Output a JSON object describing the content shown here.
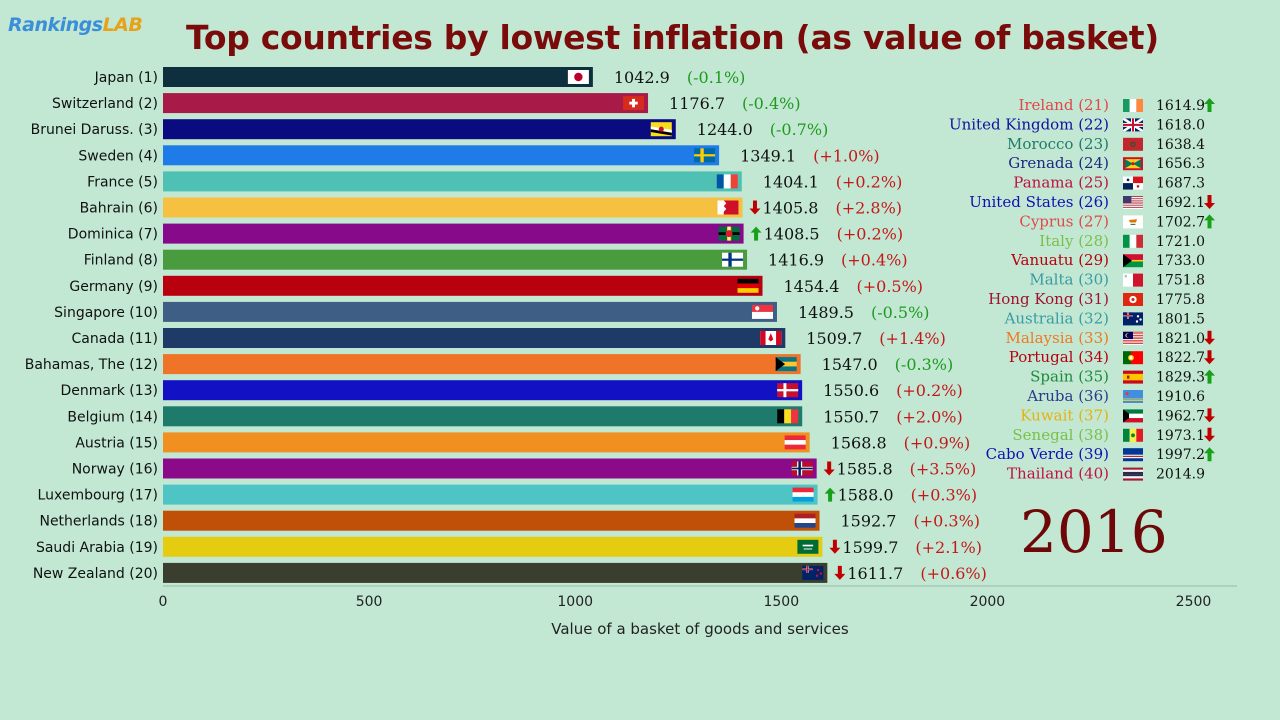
{
  "brand": {
    "part1": "Rankings",
    "part2": "LAB"
  },
  "title": "Top countries by lowest inflation (as value of basket)",
  "year": "2016",
  "chart_data": {
    "type": "bar",
    "orientation": "horizontal",
    "title": "Top countries by lowest inflation (as value of basket)",
    "xlabel": "Value of a basket of goods and services",
    "xlim": [
      0,
      2600
    ],
    "xticks": [
      0,
      500,
      1000,
      1500,
      2000,
      2500
    ],
    "grid": false,
    "bars": [
      {
        "label": "Japan (1)",
        "value": 1042.9,
        "value_text": "1042.9",
        "change": "(-0.1%)",
        "trend": "none",
        "color": "#0e2f3e",
        "flag": "jp"
      },
      {
        "label": "Switzerland (2)",
        "value": 1176.7,
        "value_text": "1176.7",
        "change": "(-0.4%)",
        "trend": "none",
        "color": "#a81a48",
        "flag": "ch"
      },
      {
        "label": "Brunei Daruss. (3)",
        "value": 1244.0,
        "value_text": "1244.0",
        "change": "(-0.7%)",
        "trend": "none",
        "color": "#0b0b80",
        "flag": "bn"
      },
      {
        "label": "Sweden (4)",
        "value": 1349.1,
        "value_text": "1349.1",
        "change": "(+1.0%)",
        "trend": "none",
        "color": "#1e7be8",
        "flag": "se"
      },
      {
        "label": "France (5)",
        "value": 1404.1,
        "value_text": "1404.1",
        "change": "(+0.2%)",
        "trend": "none",
        "color": "#4ec1b4",
        "flag": "fr"
      },
      {
        "label": "Bahrain (6)",
        "value": 1405.8,
        "value_text": "1405.8",
        "change": "(+2.8%)",
        "trend": "down",
        "color": "#f6c040",
        "flag": "bh"
      },
      {
        "label": "Dominica (7)",
        "value": 1408.5,
        "value_text": "1408.5",
        "change": "(+0.2%)",
        "trend": "up",
        "color": "#860a8a",
        "flag": "dm"
      },
      {
        "label": "Finland (8)",
        "value": 1416.9,
        "value_text": "1416.9",
        "change": "(+0.4%)",
        "trend": "none",
        "color": "#4a9a3e",
        "flag": "fi"
      },
      {
        "label": "Germany (9)",
        "value": 1454.4,
        "value_text": "1454.4",
        "change": "(+0.5%)",
        "trend": "none",
        "color": "#b8000e",
        "flag": "de"
      },
      {
        "label": "Singapore (10)",
        "value": 1489.5,
        "value_text": "1489.5",
        "change": "(-0.5%)",
        "trend": "none",
        "color": "#3e5e86",
        "flag": "sg"
      },
      {
        "label": "Canada (11)",
        "value": 1509.7,
        "value_text": "1509.7",
        "change": "(+1.4%)",
        "trend": "none",
        "color": "#1e3a66",
        "flag": "ca"
      },
      {
        "label": "Bahamas, The (12)",
        "value": 1547.0,
        "value_text": "1547.0",
        "change": "(-0.3%)",
        "trend": "none",
        "color": "#f07428",
        "flag": "bs"
      },
      {
        "label": "Denmark (13)",
        "value": 1550.6,
        "value_text": "1550.6",
        "change": "(+0.2%)",
        "trend": "none",
        "color": "#1212c4",
        "flag": "dk"
      },
      {
        "label": "Belgium (14)",
        "value": 1550.7,
        "value_text": "1550.7",
        "change": "(+2.0%)",
        "trend": "none",
        "color": "#1e7a6a",
        "flag": "be"
      },
      {
        "label": "Austria (15)",
        "value": 1568.8,
        "value_text": "1568.8",
        "change": "(+0.9%)",
        "trend": "none",
        "color": "#f09020",
        "flag": "at"
      },
      {
        "label": "Norway (16)",
        "value": 1585.8,
        "value_text": "1585.8",
        "change": "(+3.5%)",
        "trend": "down",
        "color": "#8a0a8a",
        "flag": "no"
      },
      {
        "label": "Luxembourg (17)",
        "value": 1588.0,
        "value_text": "1588.0",
        "change": "(+0.3%)",
        "trend": "up",
        "color": "#4ec4c4",
        "flag": "lu"
      },
      {
        "label": "Netherlands (18)",
        "value": 1592.7,
        "value_text": "1592.7",
        "change": "(+0.3%)",
        "trend": "none",
        "color": "#c05008",
        "flag": "nl"
      },
      {
        "label": "Saudi Arabia (19)",
        "value": 1599.7,
        "value_text": "1599.7",
        "change": "(+2.1%)",
        "trend": "down",
        "color": "#e6cc10",
        "flag": "sa"
      },
      {
        "label": "New Zealand (20)",
        "value": 1611.7,
        "value_text": "1611.7",
        "change": "(+0.6%)",
        "trend": "down",
        "color": "#3a3e2e",
        "flag": "nz"
      }
    ],
    "side_list": [
      {
        "label": "Ireland (21)",
        "value": 1614.9,
        "value_text": "1614.9",
        "trend": "up",
        "color": "#e04848",
        "flag": "ie"
      },
      {
        "label": "United Kingdom (22)",
        "value": 1618.0,
        "value_text": "1618.0",
        "trend": "none",
        "color": "#1010a0",
        "flag": "gb"
      },
      {
        "label": "Morocco (23)",
        "value": 1638.4,
        "value_text": "1638.4",
        "trend": "none",
        "color": "#1e7a6a",
        "flag": "ma"
      },
      {
        "label": "Grenada (24)",
        "value": 1656.3,
        "value_text": "1656.3",
        "trend": "none",
        "color": "#1a2a80",
        "flag": "gd"
      },
      {
        "label": "Panama (25)",
        "value": 1687.3,
        "value_text": "1687.3",
        "trend": "none",
        "color": "#c01040",
        "flag": "pa"
      },
      {
        "label": "United States (26)",
        "value": 1692.1,
        "value_text": "1692.1",
        "trend": "down",
        "color": "#1010b0",
        "flag": "us"
      },
      {
        "label": "Cyprus (27)",
        "value": 1702.7,
        "value_text": "1702.7",
        "trend": "up",
        "color": "#e04848",
        "flag": "cy"
      },
      {
        "label": "Italy (28)",
        "value": 1721.0,
        "value_text": "1721.0",
        "trend": "none",
        "color": "#7ac048",
        "flag": "it"
      },
      {
        "label": "Vanuatu (29)",
        "value": 1733.0,
        "value_text": "1733.0",
        "trend": "none",
        "color": "#b8000e",
        "flag": "vu"
      },
      {
        "label": "Malta (30)",
        "value": 1751.8,
        "value_text": "1751.8",
        "trend": "none",
        "color": "#3a9aa0",
        "flag": "mt"
      },
      {
        "label": "Hong Kong (31)",
        "value": 1775.8,
        "value_text": "1775.8",
        "trend": "none",
        "color": "#a01030",
        "flag": "hk"
      },
      {
        "label": "Australia (32)",
        "value": 1801.5,
        "value_text": "1801.5",
        "trend": "none",
        "color": "#3a9aa0",
        "flag": "au"
      },
      {
        "label": "Malaysia (33)",
        "value": 1821.0,
        "value_text": "1821.0",
        "trend": "down",
        "color": "#f07820",
        "flag": "my"
      },
      {
        "label": "Portugal (34)",
        "value": 1822.7,
        "value_text": "1822.7",
        "trend": "down",
        "color": "#b8000e",
        "flag": "pt"
      },
      {
        "label": "Spain (35)",
        "value": 1829.3,
        "value_text": "1829.3",
        "trend": "up",
        "color": "#1e8a3a",
        "flag": "es"
      },
      {
        "label": "Aruba (36)",
        "value": 1910.6,
        "value_text": "1910.6",
        "trend": "none",
        "color": "#2a3a8a",
        "flag": "aw"
      },
      {
        "label": "Kuwait (37)",
        "value": 1962.7,
        "value_text": "1962.7",
        "trend": "down",
        "color": "#e8b010",
        "flag": "kw"
      },
      {
        "label": "Senegal (38)",
        "value": 1973.1,
        "value_text": "1973.1",
        "trend": "down",
        "color": "#7ac048",
        "flag": "sn"
      },
      {
        "label": "Cabo Verde (39)",
        "value": 1997.2,
        "value_text": "1997.2",
        "trend": "up",
        "color": "#1010b0",
        "flag": "cv"
      },
      {
        "label": "Thailand (40)",
        "value": 2014.9,
        "value_text": "2014.9",
        "trend": "none",
        "color": "#c01040",
        "flag": "th"
      }
    ]
  },
  "colors": {
    "background": "#c2e8d4",
    "positive_change": "#c41818",
    "negative_change": "#1e9a1e",
    "arrow_up": "#18a018",
    "arrow_down": "#c00000"
  }
}
